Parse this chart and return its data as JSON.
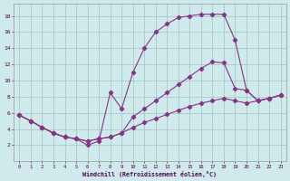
{
  "background_color": "#ceeaea",
  "grid_color": "#aac8c8",
  "line_color": "#883388",
  "xlabel": "Windchill (Refroidissement éolien,°C)",
  "xlim": [
    -0.5,
    23.5
  ],
  "ylim": [
    0,
    19.5
  ],
  "xticks": [
    0,
    1,
    2,
    3,
    4,
    5,
    6,
    7,
    8,
    9,
    10,
    11,
    12,
    13,
    14,
    15,
    16,
    17,
    18,
    19,
    20,
    21,
    22,
    23
  ],
  "yticks": [
    2,
    4,
    6,
    8,
    10,
    12,
    14,
    16,
    18
  ],
  "line1_x": [
    0,
    1,
    2,
    3,
    4,
    5,
    6,
    7,
    8,
    9,
    10,
    11,
    12,
    13,
    14,
    15,
    16,
    17,
    18,
    19,
    20,
    21,
    22,
    23
  ],
  "line1_y": [
    5.7,
    5.0,
    4.2,
    3.5,
    3.0,
    2.8,
    2.0,
    2.5,
    8.5,
    6.5,
    11.0,
    14.0,
    16.0,
    17.0,
    17.8,
    18.0,
    18.2,
    18.2,
    18.2,
    15.0,
    8.8,
    7.5,
    7.8,
    8.2
  ],
  "line2_x": [
    0,
    1,
    2,
    3,
    4,
    5,
    6,
    7,
    8,
    9,
    10,
    11,
    12,
    13,
    14,
    15,
    16,
    17,
    18,
    19,
    20,
    21,
    22,
    23
  ],
  "line2_y": [
    5.7,
    5.0,
    4.2,
    3.5,
    3.0,
    2.8,
    2.5,
    2.8,
    3.0,
    3.5,
    5.5,
    6.5,
    7.5,
    8.5,
    9.5,
    10.5,
    11.5,
    12.3,
    12.2,
    9.0,
    8.8,
    7.5,
    7.8,
    8.2
  ],
  "line3_x": [
    0,
    1,
    2,
    3,
    4,
    5,
    6,
    7,
    8,
    9,
    10,
    11,
    12,
    13,
    14,
    15,
    16,
    17,
    18,
    19,
    20,
    21,
    22,
    23
  ],
  "line3_y": [
    5.7,
    5.0,
    4.2,
    3.5,
    3.0,
    2.8,
    2.5,
    2.8,
    3.0,
    3.5,
    4.2,
    4.8,
    5.3,
    5.8,
    6.3,
    6.8,
    7.2,
    7.5,
    7.8,
    7.5,
    7.2,
    7.5,
    7.8,
    8.2
  ]
}
